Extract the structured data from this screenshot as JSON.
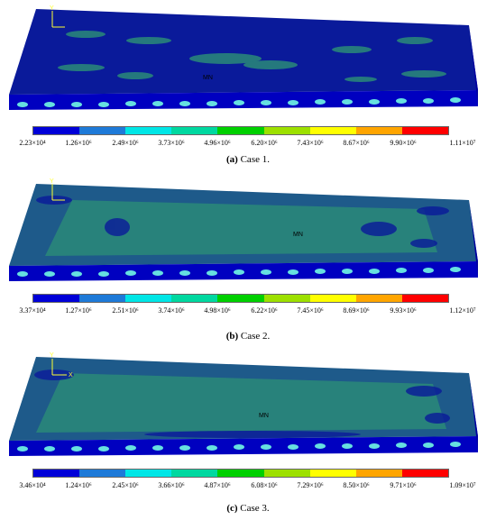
{
  "legend_colors": [
    "#0000d8",
    "#1e7ad8",
    "#00e6e6",
    "#00d8a0",
    "#00d000",
    "#9de000",
    "#ffff00",
    "#ffa500",
    "#ff0000"
  ],
  "slab_colors": {
    "base": "#0a1a9a",
    "edge": "#0000c0",
    "patch": "#2a8a78",
    "spot": "#66e0e0"
  },
  "axis": {
    "y": "Y",
    "x": "X"
  },
  "panels": [
    {
      "caption_letter": "(a)",
      "caption_text": " Case 1.",
      "mn_label": "MN",
      "ticks": [
        "2.23×10⁴",
        "1.26×10⁶",
        "2.49×10⁶",
        "3.73×10⁶",
        "4.96×10⁶",
        "6.20×10⁶",
        "7.43×10⁶",
        "8.67×10⁶",
        "9.90×10⁶",
        "1.11×10⁷"
      ]
    },
    {
      "caption_letter": "(b)",
      "caption_text": " Case 2.",
      "mn_label": "MN",
      "ticks": [
        "3.37×10⁴",
        "1.27×10⁶",
        "2.51×10⁶",
        "3.74×10⁶",
        "4.98×10⁶",
        "6.22×10⁶",
        "7.45×10⁶",
        "8.69×10⁶",
        "9.93×10⁶",
        "1.12×10⁷"
      ]
    },
    {
      "caption_letter": "(c)",
      "caption_text": " Case 3.",
      "mn_label": "MN",
      "ticks": [
        "3.46×10⁴",
        "1.24×10⁶",
        "2.45×10⁶",
        "3.66×10⁶",
        "4.87×10⁶",
        "6.08×10⁶",
        "7.29×10⁶",
        "8.50×10⁶",
        "9.71×10⁶",
        "1.09×10⁷"
      ]
    }
  ]
}
